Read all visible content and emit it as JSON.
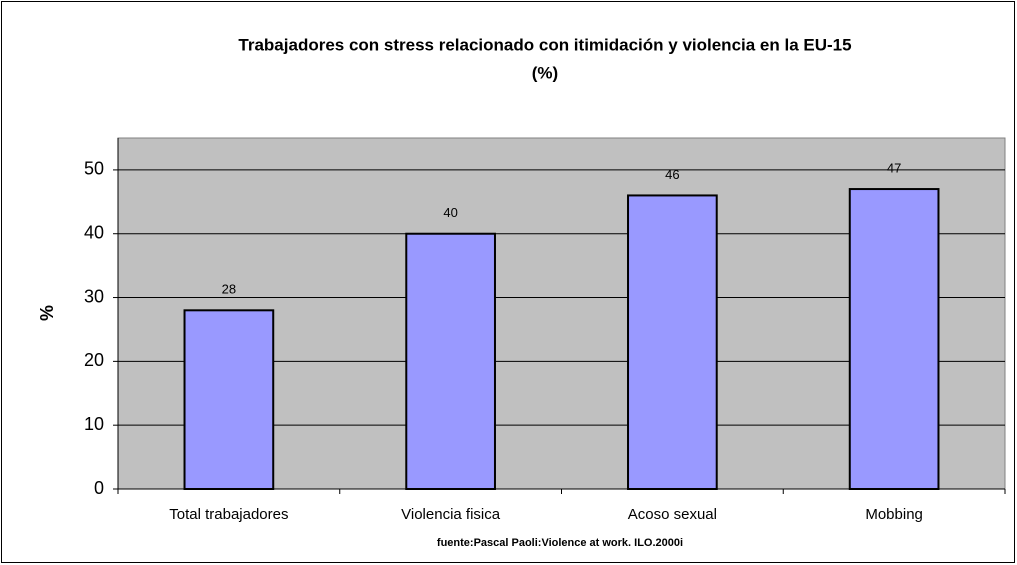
{
  "chart_data": {
    "type": "bar",
    "title": "Trabajadores con stress relacionado con itimidación y violencia en la EU-15",
    "subtitle": "(%)",
    "y_label": "%",
    "source": "fuente:Pascal Paoli:Violence at work. ILO.2000i",
    "categories": [
      "Total trabajadores",
      "Violencia fisica",
      "Acoso sexual",
      "Mobbing"
    ],
    "values": [
      28,
      40,
      46,
      47
    ],
    "color": "#9999ff",
    "plot_background": "#c0c0c0",
    "ylim": [
      0,
      55
    ],
    "yticks": [
      0,
      10,
      20,
      30,
      40,
      50
    ],
    "grid": true
  }
}
